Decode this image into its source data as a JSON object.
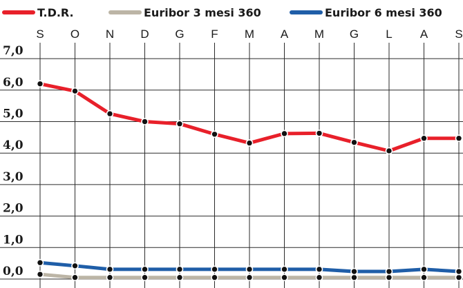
{
  "chart_data": {
    "type": "line",
    "title": "",
    "xlabel": "",
    "ylabel": "",
    "categories": [
      "S",
      "O",
      "N",
      "D",
      "G",
      "F",
      "M",
      "A",
      "M",
      "G",
      "L",
      "A",
      "S"
    ],
    "y_ticks": [
      "0,0",
      "1,0",
      "2,0",
      "3,0",
      "4,0",
      "5,0",
      "6,0",
      "7,0"
    ],
    "ylim": [
      0,
      7.6
    ],
    "grid": true,
    "legend_position": "top",
    "series": [
      {
        "name": "T.D.R.",
        "color": "#e8202a",
        "values": [
          6.2,
          5.97,
          5.25,
          5.0,
          4.93,
          4.6,
          4.32,
          4.62,
          4.63,
          4.34,
          4.07,
          4.47,
          4.47
        ]
      },
      {
        "name": "Euribor 3 mesi 360",
        "color": "#bcb5a6",
        "values": [
          0.15,
          0.05,
          0.05,
          0.05,
          0.05,
          0.05,
          0.05,
          0.05,
          0.05,
          0.05,
          0.05,
          0.05,
          0.05
        ]
      },
      {
        "name": "Euribor 6 mesi 360",
        "color": "#1f5ea8",
        "values": [
          0.52,
          0.42,
          0.31,
          0.31,
          0.31,
          0.31,
          0.31,
          0.31,
          0.31,
          0.24,
          0.24,
          0.31,
          0.24
        ]
      }
    ]
  }
}
